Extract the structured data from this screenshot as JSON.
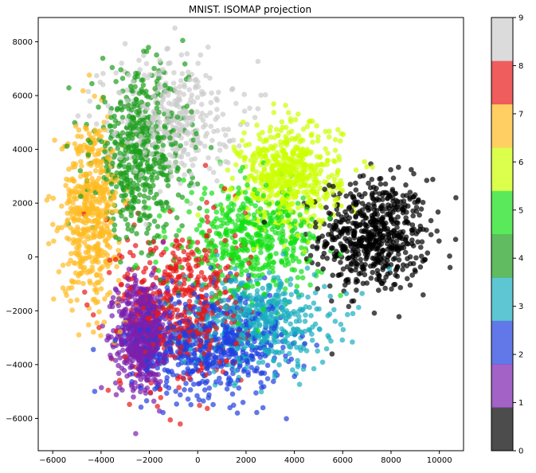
{
  "chart_data": {
    "type": "scatter",
    "title": "MNIST. ISOMAP projection",
    "xlabel": "",
    "ylabel": "",
    "xlim": [
      -6600,
      11000
    ],
    "ylim": [
      -7200,
      8900
    ],
    "x_ticks": [
      -6000,
      -4000,
      -2000,
      0,
      2000,
      4000,
      6000,
      8000,
      10000
    ],
    "y_ticks": [
      -6000,
      -4000,
      -2000,
      0,
      2000,
      4000,
      6000,
      8000
    ],
    "grid": false,
    "point_alpha": 0.7,
    "colorbar": {
      "range": [
        0,
        9
      ],
      "ticks": [
        0,
        1,
        2,
        3,
        4,
        5,
        6,
        7,
        8,
        9
      ],
      "colors": [
        "#000000",
        "#7a1fae",
        "#1f3fe0",
        "#1aaec0",
        "#1e9e1e",
        "#14e014",
        "#ccff00",
        "#ffbb22",
        "#e81818",
        "#cccccc"
      ]
    },
    "series": [
      {
        "label": 0,
        "color": "#000000",
        "centroid": [
          7300,
          800
        ],
        "spread": [
          1500,
          1400
        ],
        "count": 620
      },
      {
        "label": 1,
        "color": "#7a1fae",
        "centroid": [
          -2300,
          -2800
        ],
        "spread": [
          700,
          1300
        ],
        "count": 650
      },
      {
        "label": 2,
        "color": "#1f3fe0",
        "centroid": [
          400,
          -3200
        ],
        "spread": [
          2100,
          1300
        ],
        "count": 620
      },
      {
        "label": 3,
        "color": "#1aaec0",
        "centroid": [
          2500,
          -2400
        ],
        "spread": [
          2000,
          1200
        ],
        "count": 520
      },
      {
        "label": 4,
        "color": "#1e9e1e",
        "centroid": [
          -2400,
          3800
        ],
        "spread": [
          1300,
          2000
        ],
        "count": 540
      },
      {
        "label": 5,
        "color": "#14e014",
        "centroid": [
          2200,
          600
        ],
        "spread": [
          1900,
          1300
        ],
        "count": 480
      },
      {
        "label": 6,
        "color": "#ccff00",
        "centroid": [
          3800,
          3000
        ],
        "spread": [
          1400,
          1300
        ],
        "count": 560
      },
      {
        "label": 7,
        "color": "#ffbb22",
        "centroid": [
          -4400,
          1700
        ],
        "spread": [
          800,
          2200
        ],
        "count": 520
      },
      {
        "label": 8,
        "color": "#e81818",
        "centroid": [
          -600,
          -1800
        ],
        "spread": [
          1700,
          2100
        ],
        "count": 480
      },
      {
        "label": 9,
        "color": "#cccccc",
        "centroid": [
          -1200,
          5200
        ],
        "spread": [
          1800,
          1500
        ],
        "count": 380
      }
    ]
  }
}
